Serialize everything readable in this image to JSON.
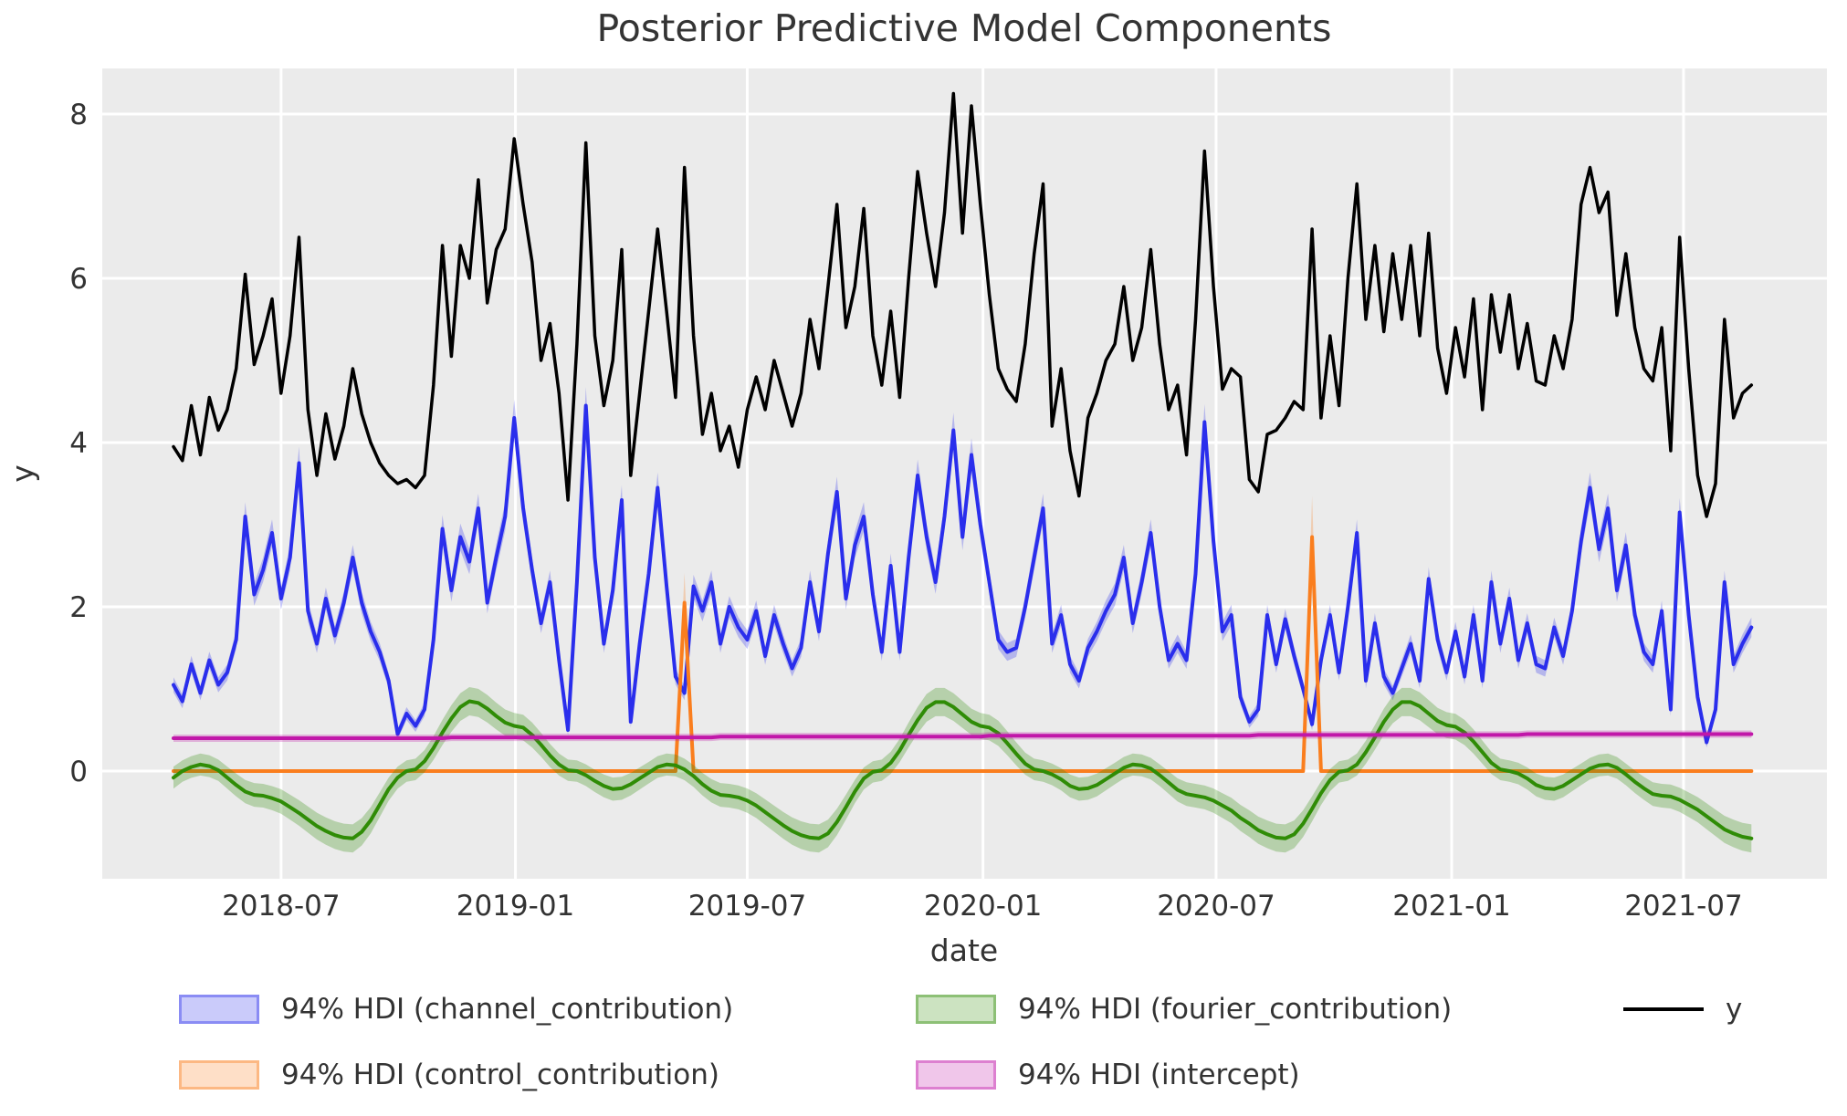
{
  "title": "Posterior Predictive Model Components",
  "xlabel": "date",
  "ylabel": "y",
  "legend": [
    {
      "label": "94% HDI (channel_contribution)",
      "series": "channel_contribution",
      "kind": "patch"
    },
    {
      "label": "94% HDI (control_contribution)",
      "series": "control_contribution",
      "kind": "patch"
    },
    {
      "label": "94% HDI (fourier_contribution)",
      "series": "fourier_contribution",
      "kind": "patch"
    },
    {
      "label": "94% HDI (intercept)",
      "series": "intercept",
      "kind": "patch"
    },
    {
      "label": "y",
      "series": "y",
      "kind": "line"
    }
  ],
  "chart_data": {
    "type": "line",
    "title": "Posterior Predictive Model Components",
    "xlabel": "date",
    "ylabel": "y",
    "x_start_date": "2018-04-09",
    "x_step_days": 7,
    "n_points": 177,
    "grid": true,
    "legend_position": "bottom",
    "ylim": [
      -1.31,
      8.56
    ],
    "y_ticks": [
      0,
      2,
      4,
      6,
      8
    ],
    "x_ticks": [
      {
        "label": "2018-07",
        "week": 12.0
      },
      {
        "label": "2019-01",
        "week": 38.14
      },
      {
        "label": "2019-07",
        "week": 64.0
      },
      {
        "label": "2020-01",
        "week": 90.29
      },
      {
        "label": "2020-07",
        "week": 116.29
      },
      {
        "label": "2021-01",
        "week": 142.57
      },
      {
        "label": "2021-07",
        "week": 168.43
      }
    ],
    "series": [
      {
        "name": "channel_contribution",
        "label": "94% HDI (channel_contribution)",
        "color": "#2a2eec",
        "band": {
          "base": 0.05,
          "rel": 0.04
        },
        "values": [
          1.05,
          0.85,
          1.3,
          0.95,
          1.35,
          1.05,
          1.2,
          1.6,
          3.1,
          2.15,
          2.45,
          2.9,
          2.1,
          2.6,
          3.75,
          1.95,
          1.55,
          2.1,
          1.65,
          2.05,
          2.6,
          2.05,
          1.7,
          1.45,
          1.1,
          0.45,
          0.7,
          0.55,
          0.75,
          1.6,
          2.95,
          2.2,
          2.85,
          2.55,
          3.2,
          2.05,
          2.6,
          3.1,
          4.3,
          3.2,
          2.45,
          1.8,
          2.3,
          1.35,
          0.5,
          2.3,
          4.45,
          2.6,
          1.55,
          2.2,
          3.3,
          0.6,
          1.55,
          2.4,
          3.45,
          2.25,
          1.15,
          0.95,
          2.25,
          1.95,
          2.3,
          1.55,
          2.0,
          1.75,
          1.6,
          1.95,
          1.4,
          1.9,
          1.55,
          1.25,
          1.5,
          2.3,
          1.7,
          2.65,
          3.4,
          2.1,
          2.75,
          3.1,
          2.15,
          1.45,
          2.5,
          1.45,
          2.6,
          3.6,
          2.85,
          2.3,
          3.1,
          4.15,
          2.85,
          3.85,
          3.0,
          2.3,
          1.6,
          1.45,
          1.5,
          2.0,
          2.6,
          3.2,
          1.55,
          1.9,
          1.3,
          1.1,
          1.5,
          1.7,
          1.95,
          2.15,
          2.6,
          1.8,
          2.3,
          2.9,
          2.0,
          1.35,
          1.55,
          1.35,
          2.4,
          4.25,
          2.8,
          1.7,
          1.9,
          0.9,
          0.6,
          0.75,
          1.9,
          1.3,
          1.85,
          1.4,
          1.0,
          0.57,
          1.35,
          1.9,
          1.2,
          2.0,
          2.9,
          1.1,
          1.8,
          1.15,
          0.95,
          1.25,
          1.55,
          1.1,
          2.34,
          1.6,
          1.2,
          1.7,
          1.15,
          1.9,
          1.1,
          2.3,
          1.55,
          2.1,
          1.35,
          1.8,
          1.3,
          1.25,
          1.75,
          1.4,
          1.95,
          2.8,
          3.45,
          2.7,
          3.2,
          2.2,
          2.75,
          1.9,
          1.45,
          1.3,
          1.95,
          0.75,
          3.15,
          1.9,
          0.9,
          0.35,
          0.75,
          2.3,
          1.3,
          1.55,
          1.75
        ]
      },
      {
        "name": "control_contribution",
        "label": "94% HDI (control_contribution)",
        "color": "#fa7e1e",
        "band": {
          "base": 0.015,
          "rel": 0.17
        },
        "values": [
          0,
          0,
          0,
          0,
          0,
          0,
          0,
          0,
          0,
          0,
          0,
          0,
          0,
          0,
          0,
          0,
          0,
          0,
          0,
          0,
          0,
          0,
          0,
          0,
          0,
          0,
          0,
          0,
          0,
          0,
          0,
          0,
          0,
          0,
          0,
          0,
          0,
          0,
          0,
          0,
          0,
          0,
          0,
          0,
          0,
          0,
          0,
          0,
          0,
          0,
          0,
          0,
          0,
          0,
          0,
          0,
          0,
          2.05,
          0,
          0,
          0,
          0,
          0,
          0,
          0,
          0,
          0,
          0,
          0,
          0,
          0,
          0,
          0,
          0,
          0,
          0,
          0,
          0,
          0,
          0,
          0,
          0,
          0,
          0,
          0,
          0,
          0,
          0,
          0,
          0,
          0,
          0,
          0,
          0,
          0,
          0,
          0,
          0,
          0,
          0,
          0,
          0,
          0,
          0,
          0,
          0,
          0,
          0,
          0,
          0,
          0,
          0,
          0,
          0,
          0,
          0,
          0,
          0,
          0,
          0,
          0,
          0,
          0,
          0,
          0,
          0,
          0,
          2.85,
          0,
          0,
          0,
          0,
          0,
          0,
          0,
          0,
          0,
          0,
          0,
          0,
          0,
          0,
          0,
          0,
          0,
          0,
          0,
          0,
          0,
          0,
          0,
          0,
          0,
          0,
          0,
          0,
          0,
          0,
          0,
          0,
          0,
          0,
          0,
          0,
          0,
          0,
          0,
          0,
          0,
          0,
          0,
          0,
          0,
          0,
          0,
          0,
          0
        ]
      },
      {
        "name": "fourier_contribution",
        "label": "94% HDI (fourier_contribution)",
        "color": "#2f8c06",
        "band": {
          "base": 0.13,
          "rel": 0.05
        },
        "values": [
          -0.08,
          0.0,
          0.05,
          0.08,
          0.06,
          0.01,
          -0.08,
          -0.17,
          -0.25,
          -0.29,
          -0.3,
          -0.33,
          -0.37,
          -0.44,
          -0.51,
          -0.59,
          -0.67,
          -0.73,
          -0.78,
          -0.81,
          -0.82,
          -0.74,
          -0.6,
          -0.41,
          -0.22,
          -0.08,
          0.0,
          0.02,
          0.12,
          0.28,
          0.47,
          0.64,
          0.78,
          0.85,
          0.83,
          0.76,
          0.67,
          0.59,
          0.55,
          0.53,
          0.44,
          0.32,
          0.19,
          0.08,
          0.01,
          0.0,
          -0.05,
          -0.12,
          -0.18,
          -0.22,
          -0.21,
          -0.16,
          -0.09,
          -0.02,
          0.05,
          0.08,
          0.07,
          0.02,
          -0.06,
          -0.16,
          -0.24,
          -0.29,
          -0.3,
          -0.32,
          -0.36,
          -0.42,
          -0.5,
          -0.58,
          -0.66,
          -0.73,
          -0.78,
          -0.81,
          -0.82,
          -0.76,
          -0.62,
          -0.44,
          -0.25,
          -0.09,
          -0.01,
          0.01,
          0.1,
          0.25,
          0.44,
          0.62,
          0.77,
          0.84,
          0.84,
          0.78,
          0.69,
          0.6,
          0.55,
          0.53,
          0.46,
          0.34,
          0.21,
          0.09,
          0.02,
          0.0,
          -0.04,
          -0.1,
          -0.18,
          -0.22,
          -0.21,
          -0.17,
          -0.1,
          -0.03,
          0.04,
          0.08,
          0.07,
          0.03,
          -0.05,
          -0.14,
          -0.23,
          -0.28,
          -0.3,
          -0.32,
          -0.36,
          -0.42,
          -0.48,
          -0.57,
          -0.64,
          -0.72,
          -0.77,
          -0.81,
          -0.82,
          -0.77,
          -0.64,
          -0.46,
          -0.27,
          -0.11,
          -0.01,
          0.01,
          0.08,
          0.23,
          0.41,
          0.6,
          0.75,
          0.84,
          0.84,
          0.79,
          0.7,
          0.61,
          0.56,
          0.54,
          0.47,
          0.36,
          0.23,
          0.1,
          0.02,
          0.0,
          -0.03,
          -0.09,
          -0.17,
          -0.21,
          -0.22,
          -0.18,
          -0.11,
          -0.04,
          0.03,
          0.07,
          0.08,
          0.04,
          -0.04,
          -0.13,
          -0.21,
          -0.28,
          -0.3,
          -0.31,
          -0.35,
          -0.41,
          -0.47,
          -0.55,
          -0.63,
          -0.71,
          -0.76,
          -0.8,
          -0.82
        ]
      },
      {
        "name": "intercept",
        "label": "94% HDI (intercept)",
        "color": "#c117a9",
        "band": {
          "base": 0.045,
          "rel": 0
        },
        "values": [
          0.4,
          0.4,
          0.4,
          0.4,
          0.4,
          0.4,
          0.4,
          0.4,
          0.4,
          0.4,
          0.4,
          0.4,
          0.4,
          0.4,
          0.4,
          0.4,
          0.4,
          0.4,
          0.4,
          0.4,
          0.4,
          0.4,
          0.4,
          0.4,
          0.4,
          0.4,
          0.4,
          0.4,
          0.4,
          0.4,
          0.4,
          0.41,
          0.41,
          0.41,
          0.41,
          0.41,
          0.41,
          0.41,
          0.41,
          0.41,
          0.41,
          0.41,
          0.41,
          0.41,
          0.41,
          0.41,
          0.41,
          0.41,
          0.41,
          0.41,
          0.41,
          0.41,
          0.41,
          0.41,
          0.41,
          0.41,
          0.41,
          0.41,
          0.41,
          0.41,
          0.41,
          0.42,
          0.42,
          0.42,
          0.42,
          0.42,
          0.42,
          0.42,
          0.42,
          0.42,
          0.42,
          0.42,
          0.42,
          0.42,
          0.42,
          0.42,
          0.42,
          0.42,
          0.42,
          0.42,
          0.42,
          0.42,
          0.42,
          0.42,
          0.42,
          0.42,
          0.42,
          0.42,
          0.42,
          0.42,
          0.42,
          0.43,
          0.43,
          0.43,
          0.43,
          0.43,
          0.43,
          0.43,
          0.43,
          0.43,
          0.43,
          0.43,
          0.43,
          0.43,
          0.43,
          0.43,
          0.43,
          0.43,
          0.43,
          0.43,
          0.43,
          0.43,
          0.43,
          0.43,
          0.43,
          0.43,
          0.43,
          0.43,
          0.43,
          0.43,
          0.43,
          0.44,
          0.44,
          0.44,
          0.44,
          0.44,
          0.44,
          0.44,
          0.44,
          0.44,
          0.44,
          0.44,
          0.44,
          0.44,
          0.44,
          0.44,
          0.44,
          0.44,
          0.44,
          0.44,
          0.44,
          0.44,
          0.44,
          0.44,
          0.44,
          0.44,
          0.44,
          0.44,
          0.44,
          0.44,
          0.44,
          0.45,
          0.45,
          0.45,
          0.45,
          0.45,
          0.45,
          0.45,
          0.45,
          0.45,
          0.45,
          0.45,
          0.45,
          0.45,
          0.45,
          0.45,
          0.45,
          0.45,
          0.45,
          0.45,
          0.45,
          0.45,
          0.45,
          0.45,
          0.45,
          0.45,
          0.45
        ]
      },
      {
        "name": "y",
        "label": "y",
        "color": "#000000",
        "band": null,
        "values": [
          3.95,
          3.78,
          4.45,
          3.85,
          4.55,
          4.15,
          4.4,
          4.9,
          6.05,
          4.95,
          5.3,
          5.75,
          4.6,
          5.3,
          6.5,
          4.4,
          3.6,
          4.35,
          3.8,
          4.2,
          4.9,
          4.35,
          4.0,
          3.75,
          3.6,
          3.5,
          3.55,
          3.45,
          3.6,
          4.7,
          6.4,
          5.05,
          6.4,
          6.0,
          7.2,
          5.7,
          6.35,
          6.6,
          7.7,
          6.9,
          6.2,
          5.0,
          5.45,
          4.6,
          3.3,
          5.2,
          7.65,
          5.3,
          4.45,
          5.0,
          6.35,
          3.6,
          4.6,
          5.6,
          6.6,
          5.6,
          4.55,
          7.35,
          5.3,
          4.1,
          4.6,
          3.9,
          4.2,
          3.7,
          4.4,
          4.8,
          4.4,
          5.0,
          4.6,
          4.2,
          4.6,
          5.5,
          4.9,
          5.9,
          6.9,
          5.4,
          5.9,
          6.85,
          5.3,
          4.7,
          5.6,
          4.55,
          6.0,
          7.3,
          6.55,
          5.9,
          6.8,
          8.25,
          6.55,
          8.1,
          6.9,
          5.8,
          4.9,
          4.65,
          4.5,
          5.2,
          6.3,
          7.15,
          4.2,
          4.9,
          3.9,
          3.35,
          4.3,
          4.6,
          5.0,
          5.2,
          5.9,
          5.0,
          5.4,
          6.35,
          5.2,
          4.4,
          4.7,
          3.85,
          5.5,
          7.55,
          5.9,
          4.65,
          4.9,
          4.8,
          3.55,
          3.4,
          4.1,
          4.15,
          4.3,
          4.5,
          4.4,
          6.6,
          4.3,
          5.3,
          4.45,
          6.0,
          7.15,
          5.5,
          6.4,
          5.35,
          6.3,
          5.5,
          6.4,
          5.3,
          6.55,
          5.15,
          4.6,
          5.4,
          4.8,
          5.75,
          4.4,
          5.8,
          5.1,
          5.8,
          4.9,
          5.45,
          4.75,
          4.7,
          5.3,
          4.9,
          5.5,
          6.9,
          7.35,
          6.8,
          7.05,
          5.55,
          6.3,
          5.4,
          4.9,
          4.75,
          5.4,
          3.9,
          6.5,
          4.9,
          3.6,
          3.1,
          3.5,
          5.5,
          4.3,
          4.6,
          4.7
        ]
      }
    ],
    "colors": {
      "plot_background": "#ebebeb",
      "grid": "#ffffff",
      "text": "#333333",
      "band_opacity": 0.28
    }
  }
}
